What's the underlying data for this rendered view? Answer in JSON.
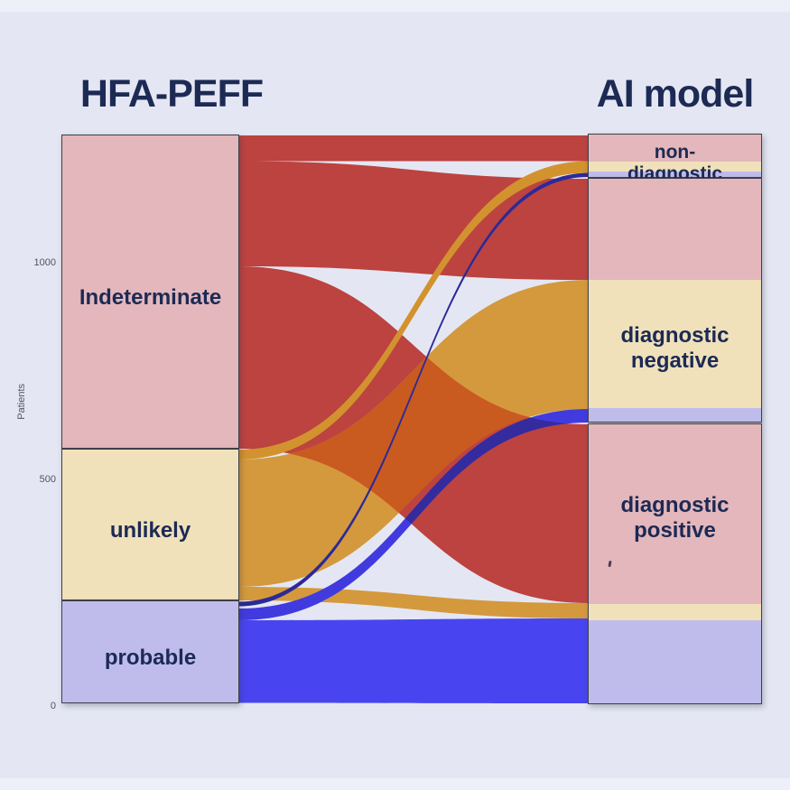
{
  "header": {
    "left_title": "HFA-PEFF",
    "right_title": "AI model"
  },
  "y_axis": {
    "label": "Patients",
    "ticks_display": [
      "1000",
      "500",
      "0"
    ]
  },
  "colors": {
    "background": "#e4e7f3",
    "frame_strip": "#edf0f9",
    "title_text": "#1c2a54",
    "axis_text": "#52525c",
    "node_border": "#3f3f47",
    "flow_red": "#bc4340",
    "flow_orange": "#d4993c",
    "flow_blue": "#4845f0"
  },
  "chart_data": {
    "type": "sankey",
    "unit": "patients",
    "y_axis": {
      "label": "Patients",
      "ticks": [
        1000,
        500,
        0
      ],
      "range": [
        0,
        1290
      ]
    },
    "columns": [
      {
        "title": "HFA-PEFF",
        "nodes": [
          {
            "label": "Indeterminate",
            "value": 680,
            "color": "#e3b7bc"
          },
          {
            "label": "unlikely",
            "value": 340,
            "color": "#f0e1bb"
          },
          {
            "label": "probable",
            "value": 225,
            "color": "#bfbcec"
          }
        ]
      },
      {
        "title": "AI model",
        "nodes": [
          {
            "label": "non-diagnostic",
            "value": 85
          },
          {
            "label": "diagnostic negative",
            "value": 540
          },
          {
            "label": "diagnostic positive",
            "value": 620
          }
        ]
      }
    ],
    "links": [
      {
        "source": "Indeterminate",
        "target": "non-diagnostic",
        "value": 55,
        "color": "#bc4340"
      },
      {
        "source": "Indeterminate",
        "target": "diagnostic negative",
        "value": 225,
        "color": "#bc4340"
      },
      {
        "source": "Indeterminate",
        "target": "diagnostic positive",
        "value": 400,
        "color": "#bc4340"
      },
      {
        "source": "unlikely",
        "target": "non-diagnostic",
        "value": 20,
        "color": "#d2932f"
      },
      {
        "source": "unlikely",
        "target": "diagnostic negative",
        "value": 285,
        "color": "#d4993c"
      },
      {
        "source": "unlikely",
        "target": "diagnostic positive",
        "value": 35,
        "color": "#d4993c"
      },
      {
        "source": "probable",
        "target": "non-diagnostic",
        "value": 10,
        "color": "#2c2999"
      },
      {
        "source": "probable",
        "target": "diagnostic negative",
        "value": 30,
        "color": "#413bdf"
      },
      {
        "source": "probable",
        "target": "diagnostic positive",
        "value": 185,
        "color": "#4845f0"
      }
    ],
    "overlap_colors": {
      "orange_over_red": "#c95a20",
      "blue_over_red": "#342b9e",
      "blue_over_orange": "#3b2f8f"
    },
    "legend_position": "none",
    "grid": false
  }
}
